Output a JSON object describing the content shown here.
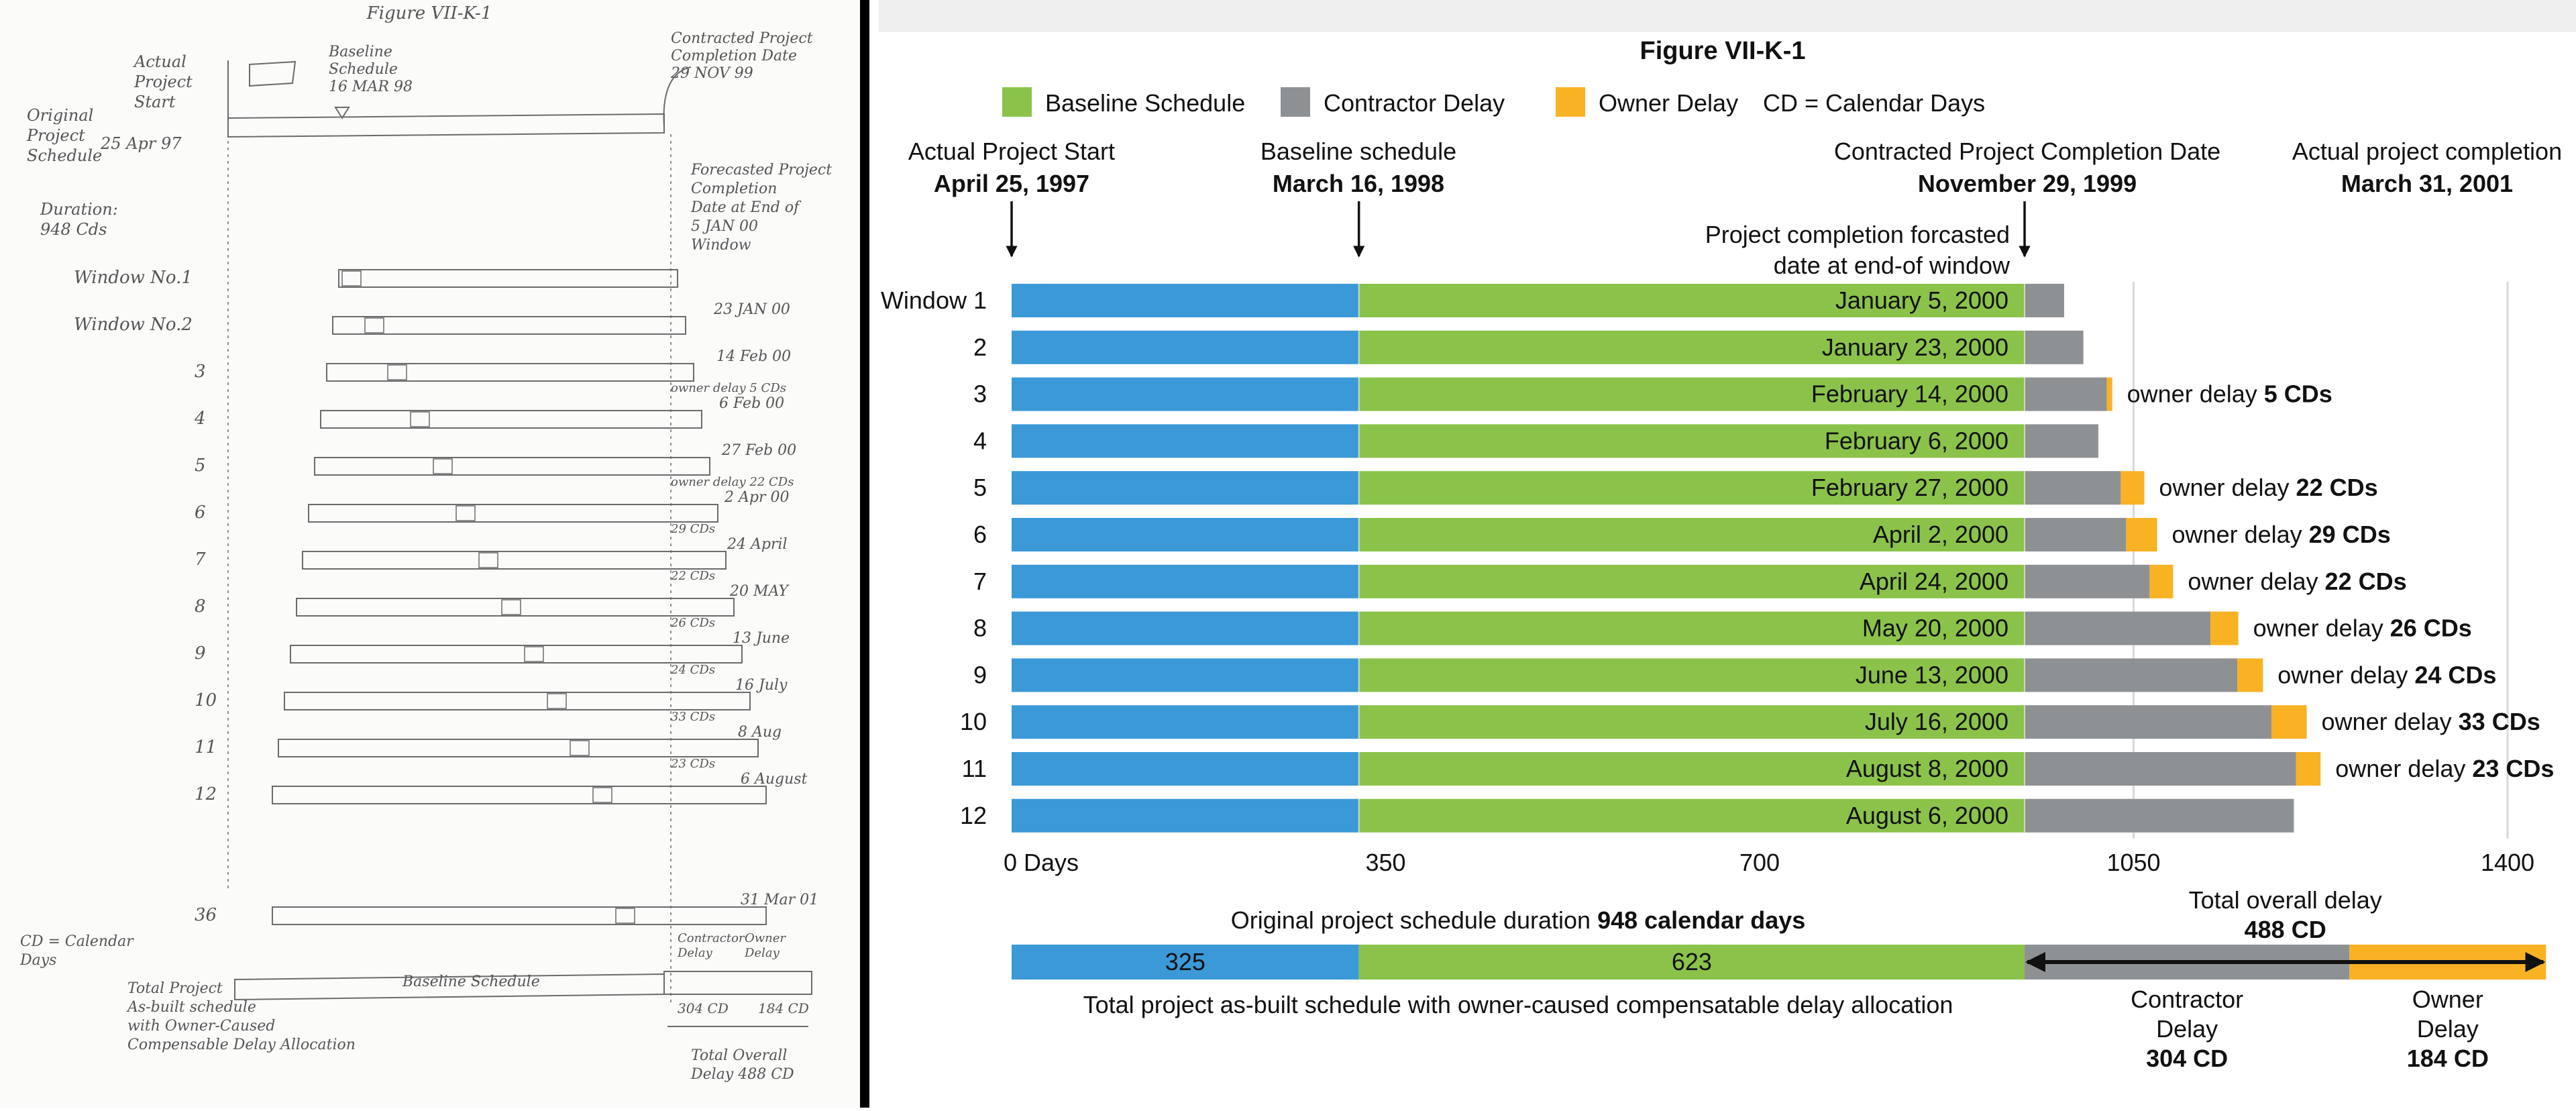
{
  "chart_data": {
    "type": "bar",
    "title": "Figure VII-K-1",
    "legend": [
      {
        "label": "Baseline Schedule",
        "color": "#8bc34a"
      },
      {
        "label": "Contractor Delay",
        "color": "#8e9194"
      },
      {
        "label": "Owner Delay",
        "color": "#f9b224"
      }
    ],
    "legend_note": "CD = Calendar Days",
    "colors": {
      "actual": "#3b99d8",
      "baseline": "#8bc34a",
      "contractor": "#8e9194",
      "owner": "#f9b224",
      "text": "#111111",
      "grid": "#d9d9d9"
    },
    "milestones": [
      {
        "label": "Actual Project Start",
        "date": "April 25, 1997",
        "day": 0
      },
      {
        "label": "Baseline schedule",
        "date": "March 16, 1998",
        "day": 325
      },
      {
        "label": "Contracted Project Completion Date",
        "date": "November 29, 1999",
        "day": 948
      },
      {
        "label": "Actual project completion",
        "date": "March 31, 2001",
        "day": null
      }
    ],
    "forecast_note": [
      "Project completion forcasted",
      "date at end-of window"
    ],
    "x_unit": "Days",
    "xticks": [
      0,
      350,
      700,
      1050,
      1400
    ],
    "xlim": [
      0,
      1400
    ],
    "windows": [
      {
        "label": "Window 1",
        "date": "January 5, 2000",
        "contractor": 37,
        "owner": 0,
        "owner_text": "",
        "owner_cd": ""
      },
      {
        "label": "2",
        "date": "January 23, 2000",
        "contractor": 55,
        "owner": 0,
        "owner_text": "",
        "owner_cd": ""
      },
      {
        "label": "3",
        "date": "February 14, 2000",
        "contractor": 77,
        "owner": 5,
        "owner_text": "owner delay",
        "owner_cd": "5 CDs"
      },
      {
        "label": "4",
        "date": "February 6, 2000",
        "contractor": 69,
        "owner": 0,
        "owner_text": "",
        "owner_cd": ""
      },
      {
        "label": "5",
        "date": "February 27, 2000",
        "contractor": 90,
        "owner": 22,
        "owner_text": "owner delay",
        "owner_cd": "22 CDs"
      },
      {
        "label": "6",
        "date": "April 2, 2000",
        "contractor": 95,
        "owner": 29,
        "owner_text": "owner delay",
        "owner_cd": "29 CDs"
      },
      {
        "label": "7",
        "date": "April 24, 2000",
        "contractor": 117,
        "owner": 22,
        "owner_text": "owner delay",
        "owner_cd": "22 CDs"
      },
      {
        "label": "8",
        "date": "May 20, 2000",
        "contractor": 174,
        "owner": 26,
        "owner_text": "owner delay",
        "owner_cd": "26 CDs"
      },
      {
        "label": "9",
        "date": "June 13, 2000",
        "contractor": 199,
        "owner": 24,
        "owner_text": "owner delay",
        "owner_cd": "24 CDs"
      },
      {
        "label": "10",
        "date": "July 16, 2000",
        "contractor": 231,
        "owner": 33,
        "owner_text": "owner delay",
        "owner_cd": "33 CDs"
      },
      {
        "label": "11",
        "date": "August 8, 2000",
        "contractor": 254,
        "owner": 23,
        "owner_text": "owner delay",
        "owner_cd": "23 CDs"
      },
      {
        "label": "12",
        "date": "August 6, 2000",
        "contractor": 252,
        "owner": 0,
        "owner_text": "",
        "owner_cd": ""
      }
    ],
    "summary": {
      "duration_text": "Original project schedule duration",
      "duration_value": "948 calendar days",
      "actual_days": 325,
      "baseline_days": 623,
      "contractor_days": 304,
      "owner_days": 184,
      "total_delay_label": "Total overall delay",
      "total_delay_value": "488 CD",
      "caption": "Total project as-built schedule with owner-caused compensatable delay allocation",
      "contractor_label": [
        "Contractor",
        "Delay"
      ],
      "contractor_value": "304 CD",
      "owner_label": [
        "Owner",
        "Delay"
      ],
      "owner_value": "184 CD"
    }
  },
  "sketch": {
    "title": "Figure VII-K-1",
    "actual_start": [
      "Actual",
      "Project",
      "Start"
    ],
    "baseline": [
      "Baseline",
      "Schedule",
      "16 MAR 98"
    ],
    "contracted": [
      "Contracted Project",
      "Completion Date",
      "29 NOV 99"
    ],
    "original": [
      "Original",
      "Project",
      "Schedule"
    ],
    "start_date": "25 Apr 97",
    "duration": [
      "Duration:",
      "948 Cds"
    ],
    "forecast": [
      "Forecasted Project",
      "Completion",
      "Date at End of",
      "5 JAN 00",
      "Window"
    ],
    "row_labels": [
      "Window No.1",
      "Window No.2",
      "3",
      "4",
      "5",
      "6",
      "7",
      "8",
      "9",
      "10",
      "11",
      "12",
      "36"
    ],
    "row_dates": [
      "",
      "23 JAN 00",
      "14 Feb 00",
      "6 Feb 00",
      "27 Feb 00",
      "2 Apr 00",
      "24 April",
      "20 MAY",
      "13 June",
      "16 July",
      "8 Aug",
      "6 August",
      "31 Mar 01"
    ],
    "row_cds": [
      "",
      "",
      "owner delay 5 CDs",
      "",
      "owner delay 22 CDs",
      "29 CDs",
      "22 CDs",
      "26 CDs",
      "24 CDs",
      "33 CDs",
      "23 CDs",
      "",
      ""
    ],
    "cd_note": [
      "CD = Calendar",
      "Days"
    ],
    "total_label": [
      "Total Project",
      "As-built schedule",
      "with Owner-Caused",
      "Compensable Delay Allocation"
    ],
    "baseline_bar": "Baseline Schedule",
    "delay_heads": [
      "Contractor",
      "Delay",
      "Owner",
      "Delay"
    ],
    "delay_vals": [
      "304 CD",
      "184 CD"
    ],
    "total_delay": [
      "Total Overall",
      "Delay 488 CD"
    ]
  }
}
